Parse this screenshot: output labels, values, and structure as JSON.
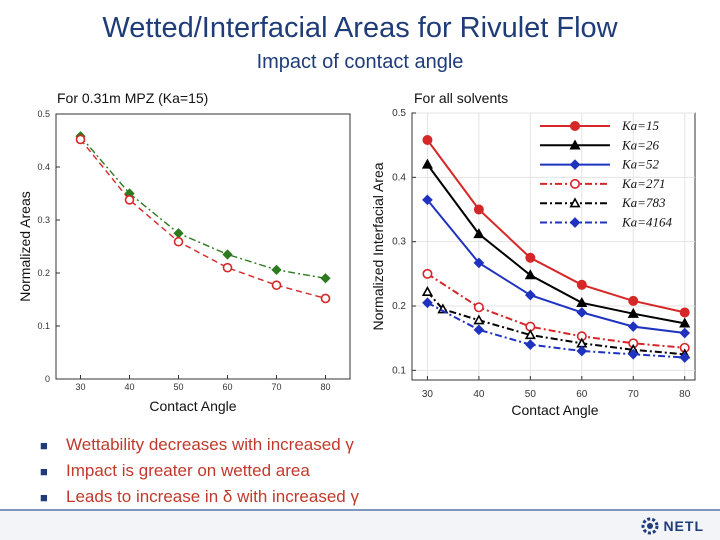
{
  "slide": {
    "title": "Wetted/Interfacial Areas for Rivulet Flow",
    "subtitle": "Impact of contact angle",
    "left_chart_label": "For 0.31m MPZ (Ka=15)",
    "right_chart_label": "For all solvents",
    "bullets": [
      "Wettability decreases with increased γ",
      "Impact is greater on wetted area",
      "Leads to increase in δ with increased γ"
    ],
    "logo_text": "NETL",
    "colors": {
      "title": "#1f3c78",
      "bullet_text": "#c0392b",
      "footer_rule": "#7f96bd"
    }
  },
  "chart_data": [
    {
      "type": "line",
      "title": "For 0.31m MPZ (Ka=15)",
      "xlabel": "Contact Angle",
      "ylabel": "Normalized Areas",
      "xlim": [
        25,
        85
      ],
      "ylim": [
        0,
        0.5
      ],
      "xticks": [
        30,
        40,
        50,
        60,
        70,
        80
      ],
      "yticks": [
        0,
        0.1,
        0.2,
        0.3,
        0.4,
        0.5
      ],
      "ytick_labels": [
        "0",
        "0.1",
        "0.2",
        "0.3",
        "0.4",
        "0.5"
      ],
      "series": [
        {
          "name": "green-diamond",
          "color": "#2d7a1f",
          "marker": "diamond",
          "dash": "dashdot",
          "x": [
            30,
            40,
            50,
            60,
            70,
            80
          ],
          "values": [
            0.458,
            0.35,
            0.275,
            0.235,
            0.206,
            0.19
          ]
        },
        {
          "name": "red-circle",
          "color": "#d62728",
          "marker": "circle-open",
          "dash": "dash",
          "x": [
            30,
            40,
            50,
            60,
            70,
            80
          ],
          "values": [
            0.452,
            0.338,
            0.259,
            0.21,
            0.177,
            0.152
          ]
        }
      ]
    },
    {
      "type": "line",
      "title": "For all solvents",
      "xlabel": "Contact Angle",
      "ylabel": "Normalized Interfacial Area",
      "xlim": [
        27,
        82
      ],
      "ylim": [
        0.085,
        0.5
      ],
      "xticks": [
        30,
        40,
        50,
        60,
        70,
        80
      ],
      "yticks": [
        0.1,
        0.2,
        0.3,
        0.4,
        0.5
      ],
      "ytick_labels": [
        "0.1",
        "0.2",
        "0.3",
        "0.4",
        "0.5"
      ],
      "legend_position": "top-right",
      "series": [
        {
          "name": "Ka=15",
          "color": "#d62728",
          "marker": "circle",
          "dash": "solid",
          "x": [
            30,
            40,
            50,
            60,
            70,
            80
          ],
          "values": [
            0.458,
            0.35,
            0.275,
            0.233,
            0.208,
            0.19
          ]
        },
        {
          "name": "Ka=26",
          "color": "#000000",
          "marker": "triangle",
          "dash": "solid",
          "x": [
            30,
            40,
            50,
            60,
            70,
            80
          ],
          "values": [
            0.42,
            0.312,
            0.248,
            0.205,
            0.188,
            0.173
          ]
        },
        {
          "name": "Ka=52",
          "color": "#1f33c0",
          "marker": "diamond",
          "dash": "solid",
          "x": [
            30,
            40,
            50,
            60,
            70,
            80
          ],
          "values": [
            0.365,
            0.267,
            0.217,
            0.19,
            0.168,
            0.158
          ]
        },
        {
          "name": "Ka=271",
          "color": "#d62728",
          "marker": "circle-open",
          "dash": "dashdot",
          "x": [
            30,
            40,
            50,
            60,
            70,
            80
          ],
          "values": [
            0.25,
            0.198,
            0.168,
            0.153,
            0.142,
            0.135
          ]
        },
        {
          "name": "Ka=783",
          "color": "#000000",
          "marker": "triangle-open",
          "dash": "dashdot",
          "x": [
            30,
            33,
            40,
            50,
            60,
            70,
            80
          ],
          "values": [
            0.222,
            0.195,
            0.178,
            0.155,
            0.142,
            0.132,
            0.125
          ]
        },
        {
          "name": "Ka=4164",
          "color": "#1f33c0",
          "marker": "diamond",
          "dash": "dashdot",
          "x": [
            30,
            40,
            50,
            60,
            70,
            80
          ],
          "values": [
            0.205,
            0.163,
            0.14,
            0.13,
            0.125,
            0.12
          ]
        }
      ]
    }
  ]
}
